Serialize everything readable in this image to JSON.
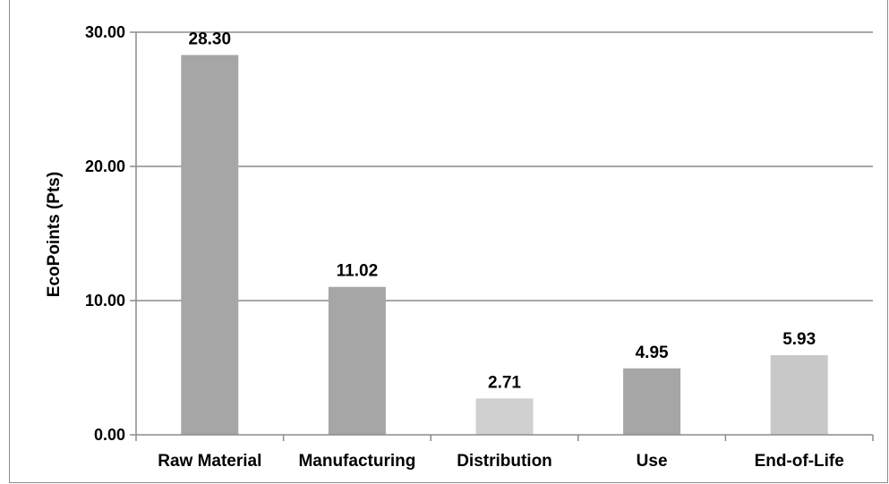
{
  "chart_data": {
    "type": "bar",
    "title": "",
    "xlabel": "",
    "ylabel": "EcoPoints (Pts)",
    "categories": [
      "Raw Material",
      "Manufacturing",
      "Distribution",
      "Use",
      "End-of-Life"
    ],
    "values": [
      28.3,
      11.02,
      2.71,
      4.95,
      5.93
    ],
    "data_labels": [
      "28.30",
      "11.02",
      "2.71",
      "4.95",
      "5.93"
    ],
    "bar_colors": [
      "#a6a6a6",
      "#a6a6a6",
      "#d0d0d0",
      "#a6a6a6",
      "#c8c8c8"
    ],
    "ylim": [
      0,
      30
    ],
    "yticks": [
      0,
      10,
      20,
      30
    ],
    "ytick_labels": [
      "0.00",
      "10.00",
      "20.00",
      "30.00"
    ],
    "grid": true,
    "gridline_color": "#8c8c8c"
  }
}
